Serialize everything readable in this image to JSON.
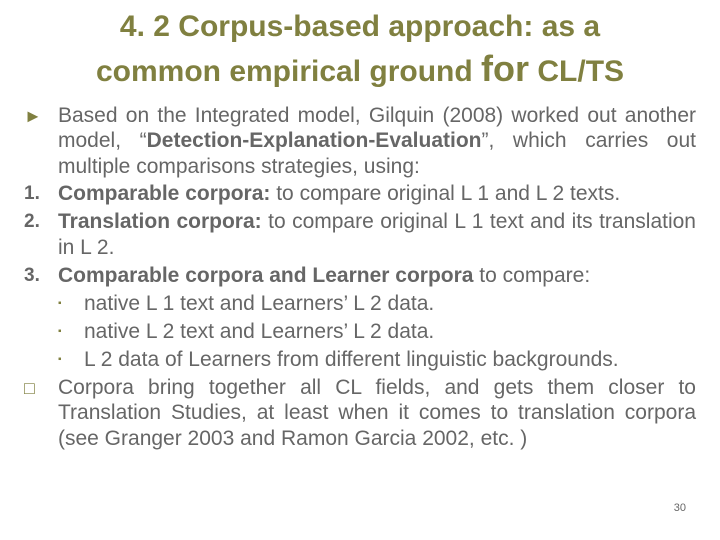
{
  "title": {
    "num": "4. 2",
    "main_a": " Corpus-based approach: as a",
    "main_b": "common empirical ground ",
    "for": "for",
    "clts": " CL/TS"
  },
  "colors": {
    "accent": "#808040",
    "text": "#666666",
    "background": "#ffffff"
  },
  "bullets": {
    "intro_a": "Based on the Integrated model, Gilquin (2008) worked out another model, “",
    "intro_bold": "Detection-Explanation-Evaluation",
    "intro_b": "”, which carries out multiple comparisons strategies, using:",
    "item1_bold": "Comparable corpora:",
    "item1_rest": " to compare original L 1 and L 2 texts.",
    "item2_bold": "Translation corpora:",
    "item2_rest": " to compare original L 1 text and its translation in L 2.",
    "item3_bold": "Comparable corpora and Learner corpora",
    "item3_rest": " to compare:",
    "sub1": "native L 1 text and Learners’ L 2 data.",
    "sub2": "native L 2 text and Learners’ L 2 data.",
    "sub3": "L 2 data of Learners from different linguistic backgrounds.",
    "closing": "Corpora bring together all CL fields, and gets them closer to Translation Studies, at least when it comes to translation corpora (see Granger 2003 and Ramon Garcia 2002, etc. )"
  },
  "markers": {
    "triangle": "►",
    "num1": "1.",
    "num2": "2.",
    "num3": "3.",
    "square": "▪",
    "qmark": "□"
  },
  "pagenum": "30"
}
